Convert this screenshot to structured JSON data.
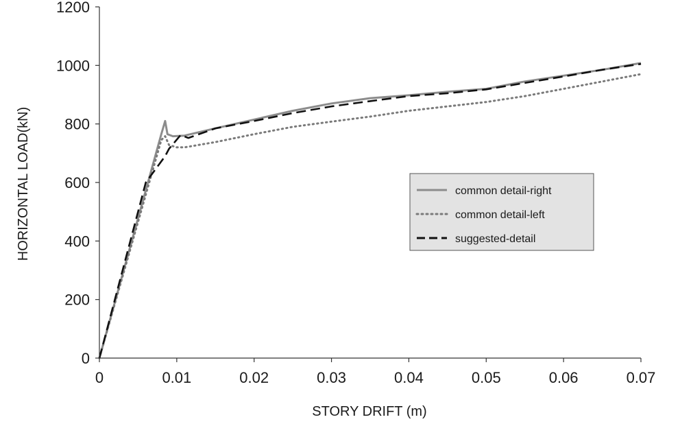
{
  "chart_data": {
    "type": "line",
    "xlabel": "STORY DRIFT (m)",
    "ylabel": "HORIZONTAL LOAD(kN)",
    "xlim": [
      0,
      0.07
    ],
    "ylim": [
      0,
      1200
    ],
    "x_ticks": [
      0,
      0.01,
      0.02,
      0.03,
      0.04,
      0.05,
      0.06,
      0.07
    ],
    "x_tick_labels": [
      "0",
      "0.01",
      "0.02",
      "0.03",
      "0.04",
      "0.05",
      "0.06",
      "0.07"
    ],
    "y_ticks": [
      0,
      200,
      400,
      600,
      800,
      1000,
      1200
    ],
    "y_tick_labels": [
      "0",
      "200",
      "400",
      "600",
      "800",
      "1000",
      "1200"
    ],
    "grid": false,
    "legend_position": "center-right",
    "series": [
      {
        "name": "common detail-right",
        "style": "solid",
        "color": "#8c8c8c",
        "x": [
          0,
          0.008,
          0.0085,
          0.0088,
          0.0095,
          0.011,
          0.015,
          0.02,
          0.025,
          0.03,
          0.035,
          0.04,
          0.045,
          0.05,
          0.055,
          0.06,
          0.065,
          0.07
        ],
        "y": [
          0,
          765,
          810,
          765,
          758,
          760,
          785,
          815,
          845,
          870,
          888,
          898,
          910,
          920,
          945,
          965,
          985,
          1008
        ]
      },
      {
        "name": "common detail-left",
        "style": "dotted",
        "color": "#7a7a7a",
        "x": [
          0,
          0.008,
          0.0085,
          0.009,
          0.01,
          0.011,
          0.015,
          0.02,
          0.025,
          0.03,
          0.035,
          0.04,
          0.045,
          0.05,
          0.055,
          0.06,
          0.065,
          0.07
        ],
        "y": [
          0,
          745,
          758,
          728,
          720,
          720,
          738,
          765,
          790,
          808,
          825,
          845,
          860,
          875,
          895,
          920,
          945,
          970
        ]
      },
      {
        "name": "suggested-detail",
        "style": "dashed",
        "color": "#111111",
        "x": [
          0,
          0.006,
          0.0085,
          0.009,
          0.0105,
          0.0115,
          0.015,
          0.02,
          0.025,
          0.03,
          0.035,
          0.04,
          0.045,
          0.05,
          0.055,
          0.06,
          0.065,
          0.07
        ],
        "y": [
          0,
          600,
          690,
          715,
          762,
          752,
          785,
          810,
          837,
          860,
          878,
          895,
          905,
          918,
          940,
          962,
          985,
          1005
        ]
      }
    ]
  }
}
